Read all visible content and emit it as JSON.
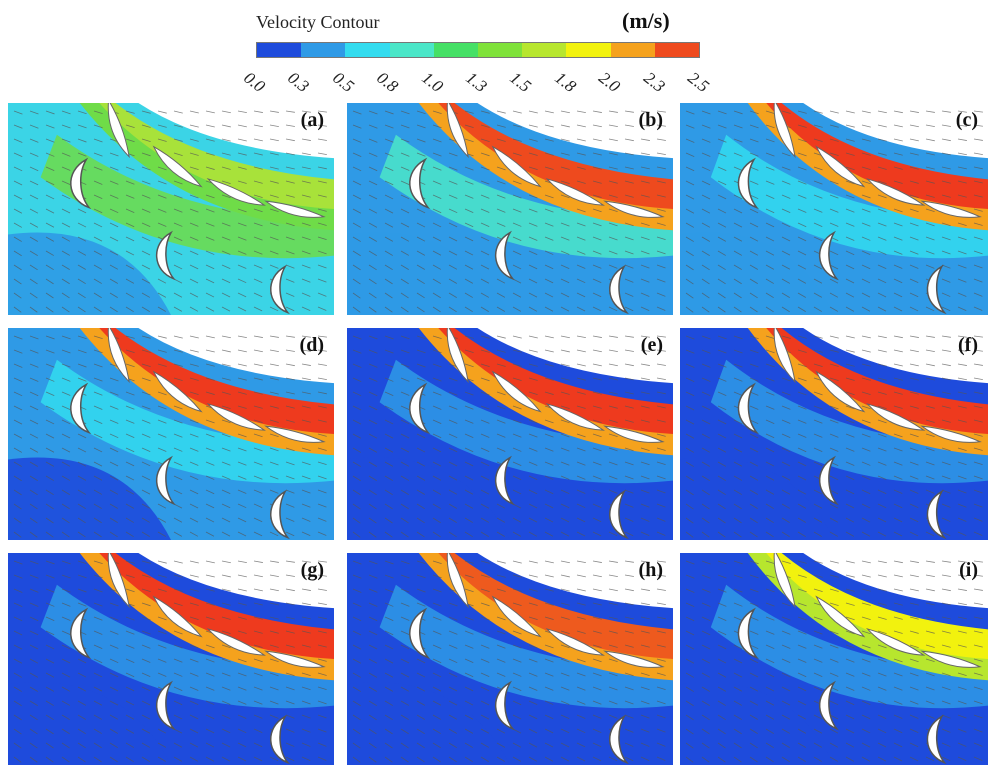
{
  "legend": {
    "title": "Velocity Contour",
    "unit": "(m/s)",
    "ticks": [
      "0.0",
      "0.3",
      "0.5",
      "0.8",
      "1.0",
      "1.3",
      "1.5",
      "1.8",
      "2.0",
      "2.3",
      "2.5"
    ],
    "colors": [
      "#1e4bdc",
      "#2f9ae6",
      "#33dcef",
      "#4be6c8",
      "#46e066",
      "#7fe23a",
      "#b7e62e",
      "#f2f20e",
      "#f5a21d",
      "#ee4a1e"
    ]
  },
  "panels": [
    {
      "label": "(a)",
      "bg": "#3bd4e6",
      "band": "#a8e23a",
      "bandEdge": "#6fdc48",
      "wake": "#6fdc48",
      "low": "#2f9ae6"
    },
    {
      "label": "(b)",
      "bg": "#2f9ae6",
      "band": "#ee4a1e",
      "bandEdge": "#f5a21d",
      "wake": "#4be6c8",
      "low": "#2f9ae6"
    },
    {
      "label": "(c)",
      "bg": "#2f9ae6",
      "band": "#ee3a1e",
      "bandEdge": "#f5a21d",
      "wake": "#33dcef",
      "low": "#2f9ae6"
    },
    {
      "label": "(d)",
      "bg": "#2f9ae6",
      "band": "#ee3a1e",
      "bandEdge": "#f5a21d",
      "wake": "#33dcef",
      "low": "#1e4bdc"
    },
    {
      "label": "(e)",
      "bg": "#1e4bdc",
      "band": "#ee3a1e",
      "bandEdge": "#f5a21d",
      "wake": "#2f9ae6",
      "low": "#1e4bdc"
    },
    {
      "label": "(f)",
      "bg": "#1e4bdc",
      "band": "#ee3a1e",
      "bandEdge": "#f5a21d",
      "wake": "#2f9ae6",
      "low": "#1e4bdc"
    },
    {
      "label": "(g)",
      "bg": "#1e4bdc",
      "band": "#ee3a1e",
      "bandEdge": "#f5a21d",
      "wake": "#2f9ae6",
      "low": "#1e4bdc"
    },
    {
      "label": "(h)",
      "bg": "#1e4bdc",
      "band": "#ee5a1e",
      "bandEdge": "#f5a21d",
      "wake": "#2f9ae6",
      "low": "#1e4bdc"
    },
    {
      "label": "(i)",
      "bg": "#1e4bdc",
      "band": "#f2f20e",
      "bandEdge": "#b7e62e",
      "wake": "#2f9ae6",
      "low": "#1e4bdc"
    }
  ]
}
